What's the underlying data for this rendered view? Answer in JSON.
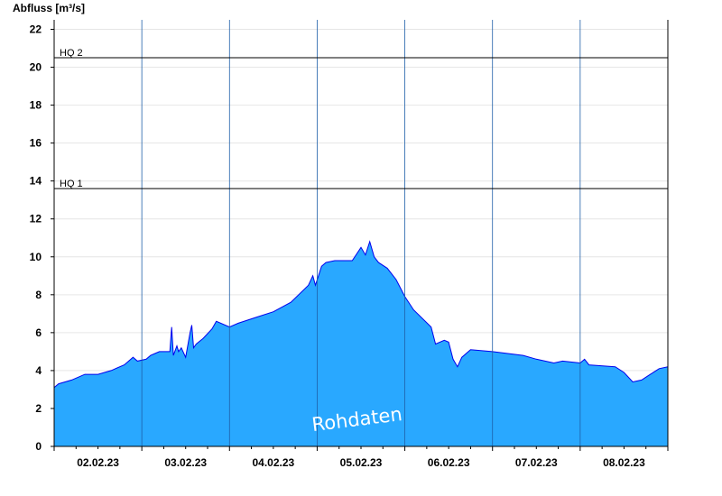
{
  "chart_data": {
    "type": "area",
    "ylabel": "Abfluss [m³/s]",
    "ylim": [
      0,
      22.5
    ],
    "yticks": [
      0,
      2,
      4,
      6,
      8,
      10,
      12,
      14,
      16,
      18,
      20,
      22
    ],
    "xlim": [
      1.5,
      8.5
    ],
    "day_labels": [
      "02.02.23",
      "03.02.23",
      "04.02.23",
      "05.02.23",
      "06.02.23",
      "07.02.23",
      "08.02.23"
    ],
    "day_boundaries": [
      2.5,
      3.5,
      4.5,
      5.5,
      6.5,
      7.5
    ],
    "thresholds": [
      {
        "name": "HQ 2",
        "value": 20.5
      },
      {
        "name": "HQ 1",
        "value": 13.6
      }
    ],
    "watermark": "Rohdaten",
    "grid": true,
    "fill_color": "#29a8ff",
    "line_color": "#0000ee",
    "series": [
      {
        "x": [
          1.5,
          1.55,
          1.7,
          1.85,
          2.0,
          2.15,
          2.3,
          2.4,
          2.45,
          2.55,
          2.6,
          2.65,
          2.7,
          2.82,
          2.84,
          2.86,
          2.9,
          2.92,
          2.95,
          3.0,
          3.05,
          3.07,
          3.09,
          3.12,
          3.2,
          3.3,
          3.35,
          3.5,
          3.6,
          3.8,
          4.0,
          4.2,
          4.4,
          4.45,
          4.48,
          4.55,
          4.6,
          4.7,
          4.9,
          5.0,
          5.05,
          5.1,
          5.15,
          5.2,
          5.3,
          5.4,
          5.5,
          5.6,
          5.8,
          5.85,
          5.95,
          6.0,
          6.05,
          6.1,
          6.15,
          6.25,
          6.5,
          6.85,
          7.0,
          7.2,
          7.3,
          7.5,
          7.55,
          7.6,
          7.9,
          8.0,
          8.1,
          8.2,
          8.3,
          8.4,
          8.5
        ],
        "values": [
          3.1,
          3.3,
          3.5,
          3.8,
          3.8,
          4.0,
          4.3,
          4.7,
          4.5,
          4.6,
          4.8,
          4.9,
          5.0,
          5.0,
          6.3,
          4.8,
          5.3,
          5.0,
          5.2,
          4.7,
          6.0,
          6.4,
          5.2,
          5.4,
          5.7,
          6.2,
          6.6,
          6.3,
          6.5,
          6.8,
          7.1,
          7.6,
          8.5,
          9.0,
          8.5,
          9.5,
          9.7,
          9.8,
          9.8,
          10.5,
          10.1,
          10.8,
          10.0,
          9.7,
          9.4,
          8.8,
          7.9,
          7.2,
          6.3,
          5.4,
          5.6,
          5.5,
          4.6,
          4.2,
          4.7,
          5.1,
          5.0,
          4.8,
          4.6,
          4.4,
          4.5,
          4.4,
          4.6,
          4.3,
          4.2,
          3.9,
          3.4,
          3.5,
          3.8,
          4.1,
          4.2
        ]
      }
    ]
  }
}
